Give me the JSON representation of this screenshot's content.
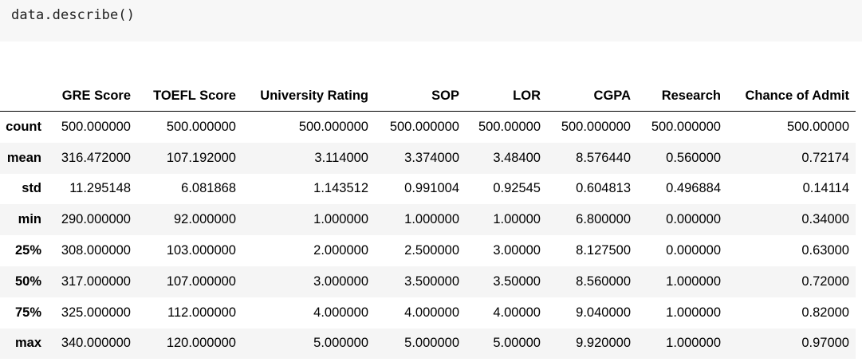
{
  "code_cell": {
    "source": "data.describe()"
  },
  "table": {
    "index_header": "",
    "columns": [
      "GRE Score",
      "TOEFL Score",
      "University Rating",
      "SOP",
      "LOR",
      "CGPA",
      "Research",
      "Chance of Admit"
    ],
    "rows": [
      {
        "label": "count",
        "values": [
          "500.000000",
          "500.000000",
          "500.000000",
          "500.000000",
          "500.00000",
          "500.000000",
          "500.000000",
          "500.00000"
        ]
      },
      {
        "label": "mean",
        "values": [
          "316.472000",
          "107.192000",
          "3.114000",
          "3.374000",
          "3.48400",
          "8.576440",
          "0.560000",
          "0.72174"
        ]
      },
      {
        "label": "std",
        "values": [
          "11.295148",
          "6.081868",
          "1.143512",
          "0.991004",
          "0.92545",
          "0.604813",
          "0.496884",
          "0.14114"
        ]
      },
      {
        "label": "min",
        "values": [
          "290.000000",
          "92.000000",
          "1.000000",
          "1.000000",
          "1.00000",
          "6.800000",
          "0.000000",
          "0.34000"
        ]
      },
      {
        "label": "25%",
        "values": [
          "308.000000",
          "103.000000",
          "2.000000",
          "2.500000",
          "3.00000",
          "8.127500",
          "0.000000",
          "0.63000"
        ]
      },
      {
        "label": "50%",
        "values": [
          "317.000000",
          "107.000000",
          "3.000000",
          "3.500000",
          "3.50000",
          "8.560000",
          "1.000000",
          "0.72000"
        ]
      },
      {
        "label": "75%",
        "values": [
          "325.000000",
          "112.000000",
          "4.000000",
          "4.000000",
          "4.00000",
          "9.040000",
          "1.000000",
          "0.82000"
        ]
      },
      {
        "label": "max",
        "values": [
          "340.000000",
          "120.000000",
          "5.000000",
          "5.000000",
          "5.00000",
          "9.920000",
          "1.000000",
          "0.97000"
        ]
      }
    ]
  }
}
